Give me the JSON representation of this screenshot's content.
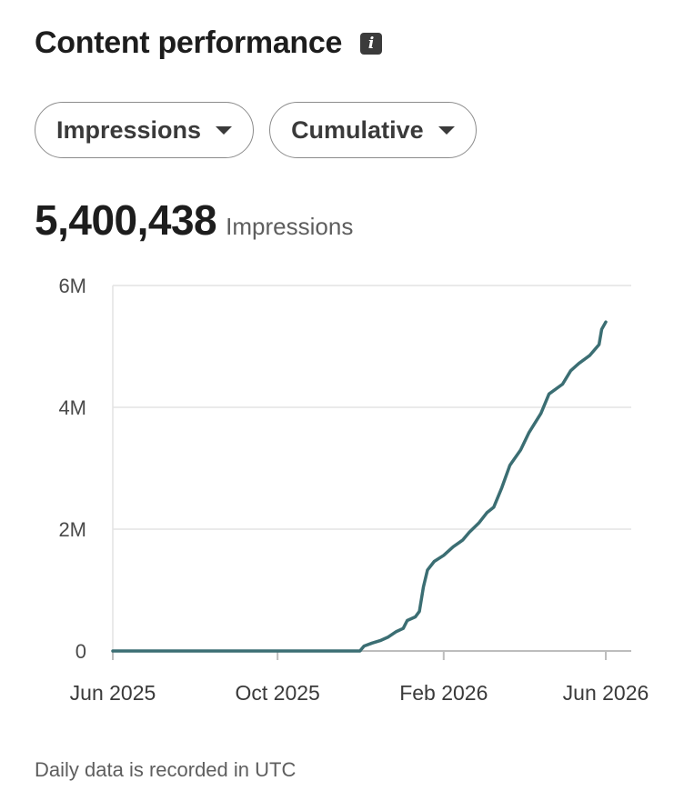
{
  "header": {
    "title": "Content performance",
    "info_icon": "info-icon"
  },
  "filters": {
    "metric": {
      "label": "Impressions",
      "icon": "chevron-down-icon"
    },
    "mode": {
      "label": "Cumulative",
      "icon": "chevron-down-icon"
    }
  },
  "summary": {
    "value": "5,400,438",
    "unit": "Impressions"
  },
  "chart_data": {
    "type": "line",
    "title": "",
    "xlabel": "",
    "ylabel": "",
    "ylim": [
      0,
      6000000
    ],
    "y_ticks": [
      {
        "value": 0,
        "label": "0"
      },
      {
        "value": 2000000,
        "label": "2M"
      },
      {
        "value": 4000000,
        "label": "4M"
      },
      {
        "value": 6000000,
        "label": "6M"
      }
    ],
    "x_ticks": [
      {
        "date": "2025-06-01",
        "label": "Jun 2025"
      },
      {
        "date": "2025-10-01",
        "label": "Oct 2025"
      },
      {
        "date": "2026-02-01",
        "label": "Feb 2026"
      },
      {
        "date": "2026-06-01",
        "label": "Jun 2026"
      }
    ],
    "xlim": [
      "2025-06-01",
      "2026-06-01"
    ],
    "grid": "horizontal",
    "color": "#3b6e73",
    "series": [
      {
        "points": [
          [
            "2025-06-01",
            0
          ],
          [
            "2025-12-01",
            0
          ],
          [
            "2025-12-04",
            80000
          ],
          [
            "2025-12-10",
            130000
          ],
          [
            "2025-12-16",
            170000
          ],
          [
            "2025-12-22",
            230000
          ],
          [
            "2025-12-28",
            320000
          ],
          [
            "2026-01-02",
            370000
          ],
          [
            "2026-01-05",
            500000
          ],
          [
            "2026-01-11",
            560000
          ],
          [
            "2026-01-14",
            650000
          ],
          [
            "2026-01-17",
            1050000
          ],
          [
            "2026-01-20",
            1330000
          ],
          [
            "2026-01-25",
            1470000
          ],
          [
            "2026-02-01",
            1570000
          ],
          [
            "2026-02-08",
            1710000
          ],
          [
            "2026-02-15",
            1820000
          ],
          [
            "2026-02-20",
            1950000
          ],
          [
            "2026-02-27",
            2100000
          ],
          [
            "2026-03-05",
            2270000
          ],
          [
            "2026-03-10",
            2360000
          ],
          [
            "2026-03-16",
            2680000
          ],
          [
            "2026-03-22",
            3050000
          ],
          [
            "2026-03-30",
            3300000
          ],
          [
            "2026-04-05",
            3580000
          ],
          [
            "2026-04-14",
            3900000
          ],
          [
            "2026-04-20",
            4220000
          ],
          [
            "2026-04-30",
            4380000
          ],
          [
            "2026-05-06",
            4600000
          ],
          [
            "2026-05-12",
            4720000
          ],
          [
            "2026-05-20",
            4850000
          ],
          [
            "2026-05-27",
            5030000
          ],
          [
            "2026-05-29",
            5280000
          ],
          [
            "2026-06-01",
            5400438
          ]
        ]
      }
    ]
  },
  "footnote": "Daily data is recorded in UTC"
}
